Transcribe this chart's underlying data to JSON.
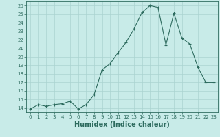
{
  "title": "",
  "xlabel": "Humidex (Indice chaleur)",
  "ylabel": "",
  "x": [
    0,
    1,
    2,
    3,
    4,
    5,
    6,
    7,
    8,
    9,
    10,
    11,
    12,
    13,
    14,
    15,
    16,
    17,
    18,
    19,
    20,
    21,
    22,
    23
  ],
  "y": [
    13.9,
    14.4,
    14.2,
    14.4,
    14.5,
    14.8,
    13.9,
    14.4,
    15.6,
    18.5,
    19.2,
    20.5,
    21.7,
    23.3,
    25.2,
    26.0,
    25.8,
    21.4,
    25.1,
    22.2,
    21.5,
    18.8,
    17.0,
    17.0
  ],
  "line_color": "#2d6b5e",
  "marker": "+",
  "bg_color": "#c8ebe8",
  "grid_color": "#aad4d0",
  "ylim": [
    13.5,
    26.5
  ],
  "yticks": [
    14,
    15,
    16,
    17,
    18,
    19,
    20,
    21,
    22,
    23,
    24,
    25,
    26
  ],
  "xlim": [
    -0.5,
    23.5
  ],
  "xticks": [
    0,
    1,
    2,
    3,
    4,
    5,
    6,
    7,
    8,
    9,
    10,
    11,
    12,
    13,
    14,
    15,
    16,
    17,
    18,
    19,
    20,
    21,
    22,
    23
  ],
  "tick_label_fontsize": 5.0,
  "xlabel_fontsize": 7.0,
  "axis_color": "#2d6b5e",
  "line_width": 0.8,
  "marker_size": 3.0
}
